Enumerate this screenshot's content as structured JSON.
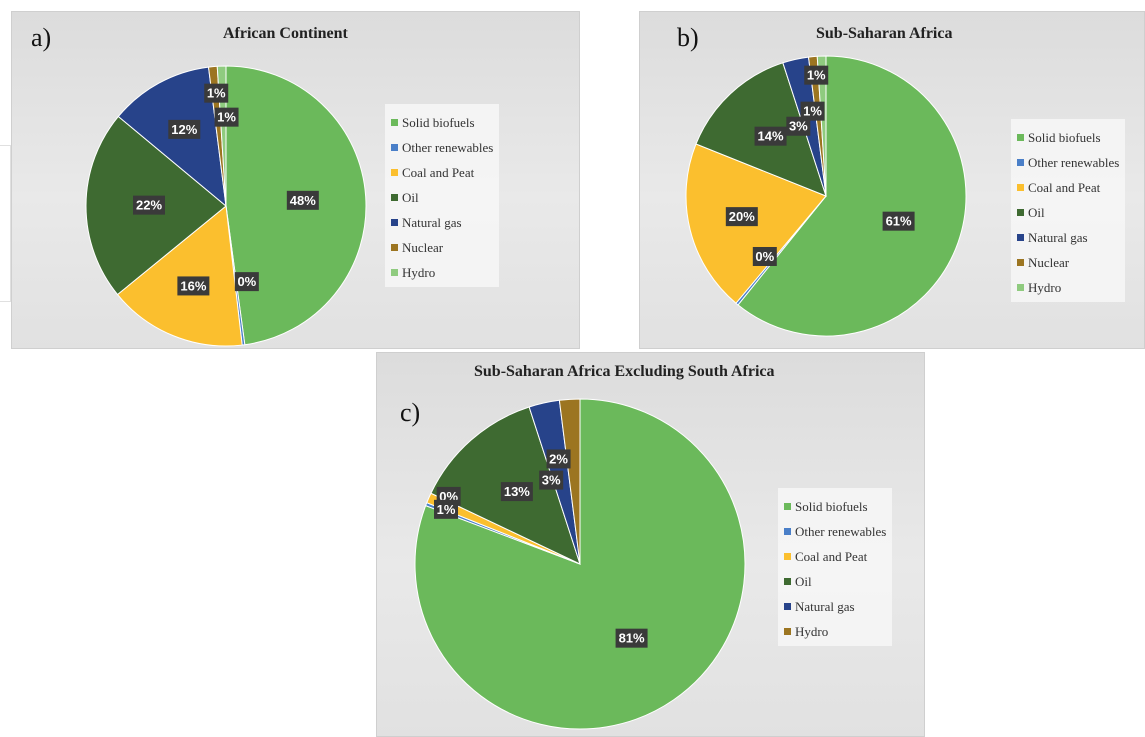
{
  "chart_data": [
    {
      "type": "pie",
      "panel_label": "a)",
      "title": "African Continent",
      "labels": [
        "Solid biofuels",
        "Other renewables",
        "Coal and Peat",
        "Oil",
        "Natural gas",
        "Nuclear",
        "Hydro"
      ],
      "values": [
        48,
        0.3,
        16,
        22,
        12,
        1,
        1
      ],
      "data_labels": [
        "48%",
        "0%",
        "16%",
        "22%",
        "12%",
        "1%",
        "1%"
      ],
      "colors": [
        "#6bb95b",
        "#4a7fc8",
        "#fbbf2e",
        "#3e6a31",
        "#27438a",
        "#9c7521",
        "#8fcb7f"
      ],
      "legend_position": "right"
    },
    {
      "type": "pie",
      "panel_label": "b)",
      "title": "Sub-Saharan Africa",
      "labels": [
        "Solid biofuels",
        "Other renewables",
        "Coal and Peat",
        "Oil",
        "Natural gas",
        "Nuclear",
        "Hydro"
      ],
      "values": [
        61,
        0.3,
        20,
        14,
        3,
        1,
        1
      ],
      "data_labels": [
        "61%",
        "0%",
        "20%",
        "14%",
        "3%",
        "1%",
        "1%"
      ],
      "colors": [
        "#6bb95b",
        "#4a7fc8",
        "#fbbf2e",
        "#3e6a31",
        "#27438a",
        "#9c7521",
        "#8fcb7f"
      ],
      "legend_position": "right"
    },
    {
      "type": "pie",
      "panel_label": "c)",
      "title": "Sub-Saharan Africa Excluding South Africa",
      "labels": [
        "Solid biofuels",
        "Other renewables",
        "Coal and Peat",
        "Oil",
        "Natural gas",
        "Hydro"
      ],
      "values": [
        81,
        0.3,
        1,
        13,
        3,
        2
      ],
      "data_labels": [
        "81%",
        "0%",
        "1%",
        "13%",
        "3%",
        "2%"
      ],
      "colors": [
        "#6bb95b",
        "#4a7fc8",
        "#fbbf2e",
        "#3e6a31",
        "#27438a",
        "#9c7521"
      ],
      "legend_position": "right"
    }
  ]
}
